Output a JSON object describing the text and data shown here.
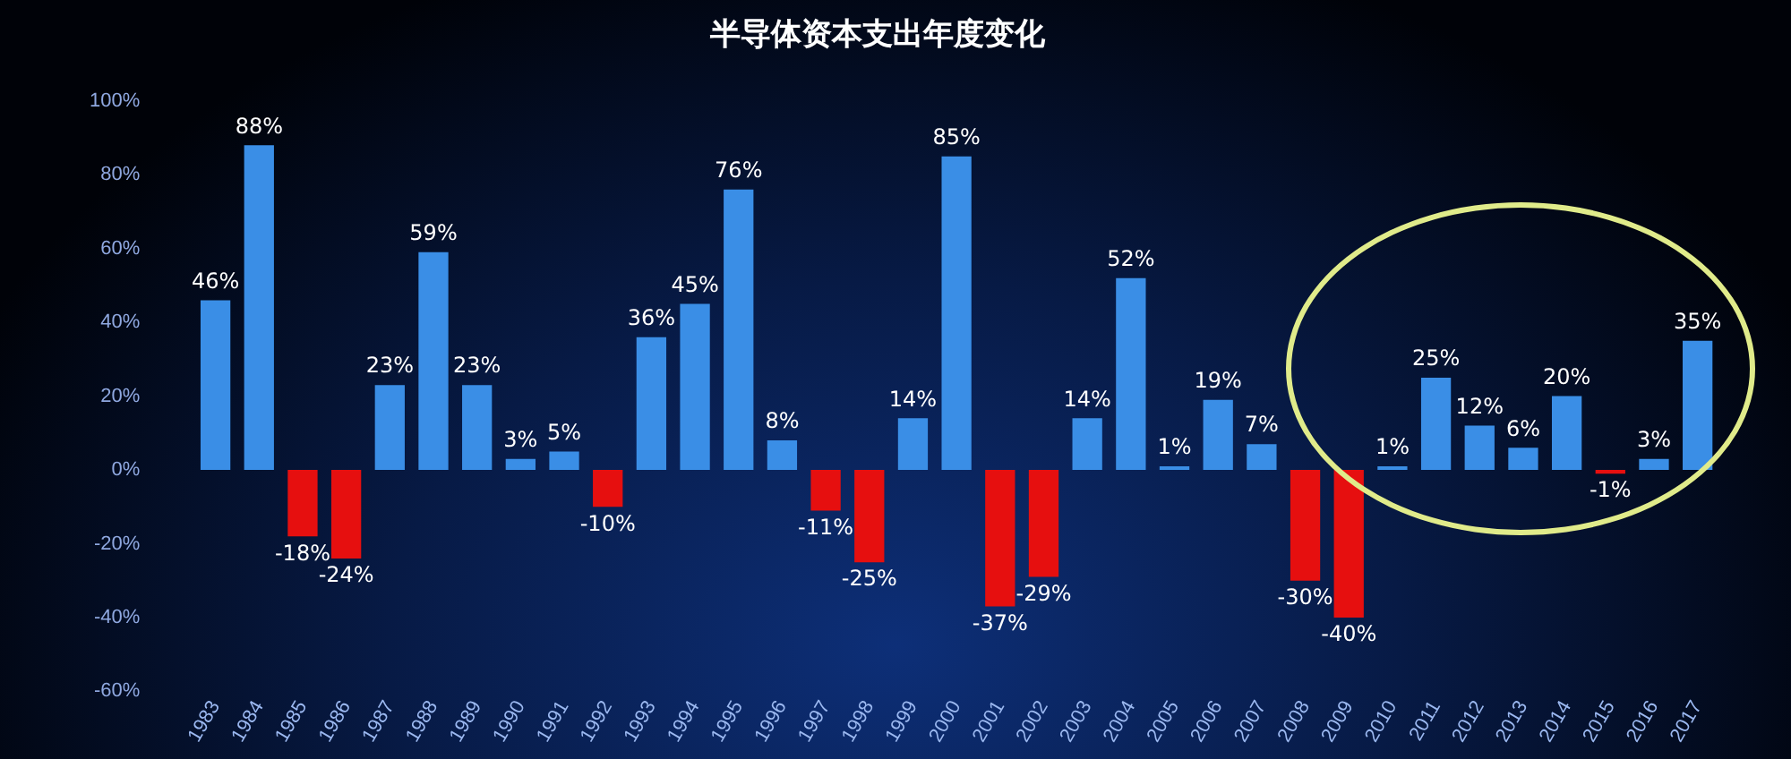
{
  "chart_data": {
    "type": "bar",
    "title": "半导体资本支出年度变化",
    "categories": [
      "1983",
      "1984",
      "1985",
      "1986",
      "1987",
      "1988",
      "1989",
      "1990",
      "1991",
      "1992",
      "1993",
      "1994",
      "1995",
      "1996",
      "1997",
      "1998",
      "1999",
      "2000",
      "2001",
      "2002",
      "2003",
      "2004",
      "2005",
      "2006",
      "2007",
      "2008",
      "2009",
      "2010",
      "2011",
      "2012",
      "2013",
      "2014",
      "2015",
      "2016",
      "2017"
    ],
    "values": [
      46,
      88,
      -18,
      -24,
      23,
      59,
      23,
      3,
      5,
      -10,
      36,
      45,
      76,
      8,
      -11,
      -25,
      14,
      85,
      -37,
      -29,
      14,
      52,
      1,
      19,
      7,
      -30,
      -40,
      1,
      25,
      12,
      6,
      20,
      -1,
      3,
      35
    ],
    "colors": [
      "#3a8ee6",
      "#3a8ee6",
      "#e60f0f",
      "#e60f0f",
      "#3a8ee6",
      "#3a8ee6",
      "#3a8ee6",
      "#3a8ee6",
      "#3a8ee6",
      "#e60f0f",
      "#3a8ee6",
      "#3a8ee6",
      "#3a8ee6",
      "#3a8ee6",
      "#e60f0f",
      "#e60f0f",
      "#3a8ee6",
      "#3a8ee6",
      "#e60f0f",
      "#e60f0f",
      "#3a8ee6",
      "#3a8ee6",
      "#3a8ee6",
      "#3a8ee6",
      "#3a8ee6",
      "#e60f0f",
      "#e60f0f",
      "#3a8ee6",
      "#3a8ee6",
      "#3a8ee6",
      "#3a8ee6",
      "#3a8ee6",
      "#e60f0f",
      "#3a8ee6",
      "#3a8ee6"
    ],
    "value_labels": [
      "46%",
      "88%",
      "-18%",
      "-24%",
      "23%",
      "59%",
      "23%",
      "3%",
      "5%",
      "-10%",
      "36%",
      "45%",
      "76%",
      "8%",
      "-11%",
      "-25%",
      "14%",
      "85%",
      "-37%",
      "-29%",
      "14%",
      "52%",
      "1%",
      "19%",
      "7%",
      "-30%",
      "-40%",
      "1%",
      "25%",
      "12%",
      "6%",
      "20%",
      "-1%",
      "3%",
      "35%"
    ],
    "ylim": [
      -60,
      100
    ],
    "yticks": [
      {
        "value": -60,
        "label": "-60%"
      },
      {
        "value": -40,
        "label": "-40%"
      },
      {
        "value": -20,
        "label": "-20%"
      },
      {
        "value": 0,
        "label": "0%"
      },
      {
        "value": 20,
        "label": "20%"
      },
      {
        "value": 40,
        "label": "40%"
      },
      {
        "value": 60,
        "label": "60%"
      },
      {
        "value": 80,
        "label": "80%"
      },
      {
        "value": 100,
        "label": "100%"
      }
    ],
    "grid": false,
    "legend": false
  }
}
